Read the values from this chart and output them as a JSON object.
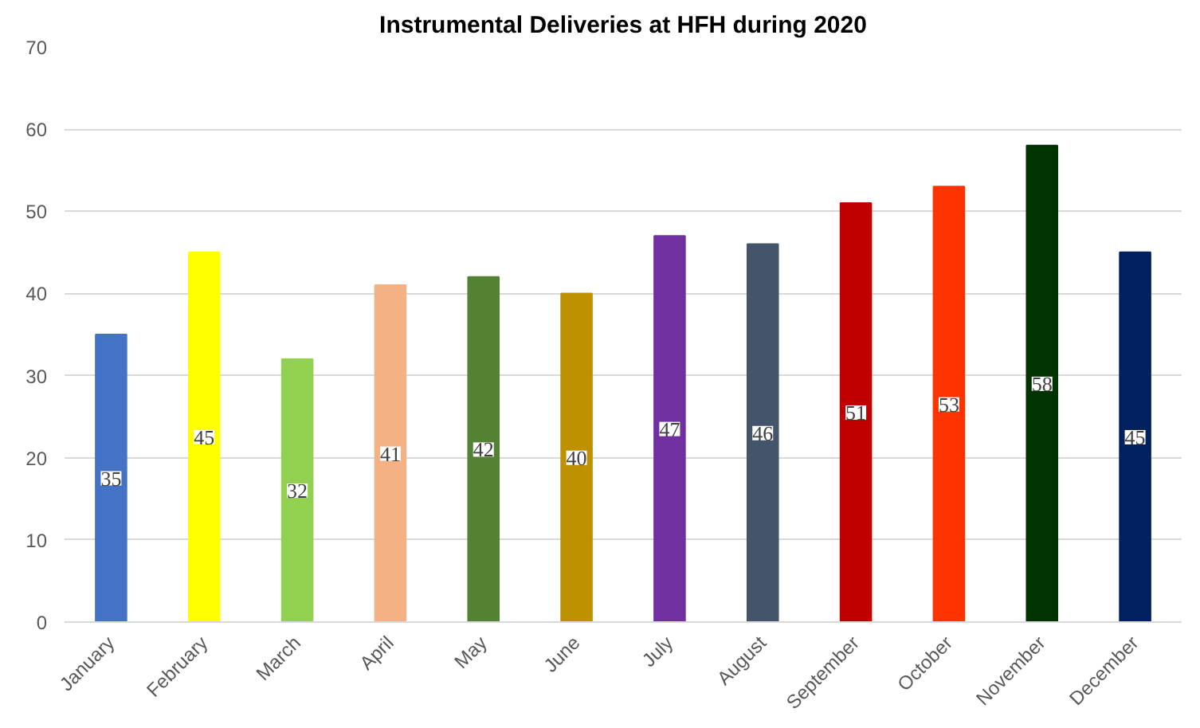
{
  "chart_data": {
    "type": "bar",
    "title": "Instrumental Deliveries at HFH during 2020",
    "categories": [
      "January",
      "February",
      "March",
      "April",
      "May",
      "June",
      "July",
      "August",
      "September",
      "October",
      "November",
      "December"
    ],
    "values": [
      35,
      45,
      32,
      41,
      42,
      40,
      47,
      46,
      51,
      53,
      58,
      45
    ],
    "colors": [
      "#4472c4",
      "#ffff00",
      "#92d050",
      "#f4b183",
      "#548235",
      "#bf9000",
      "#7030a0",
      "#44546a",
      "#c00000",
      "#ff3300",
      "#003300",
      "#002060"
    ],
    "ylim": [
      0,
      70
    ],
    "yticks": [
      0,
      10,
      20,
      30,
      40,
      50,
      60,
      70
    ],
    "grid": "y",
    "data_labels": true
  }
}
